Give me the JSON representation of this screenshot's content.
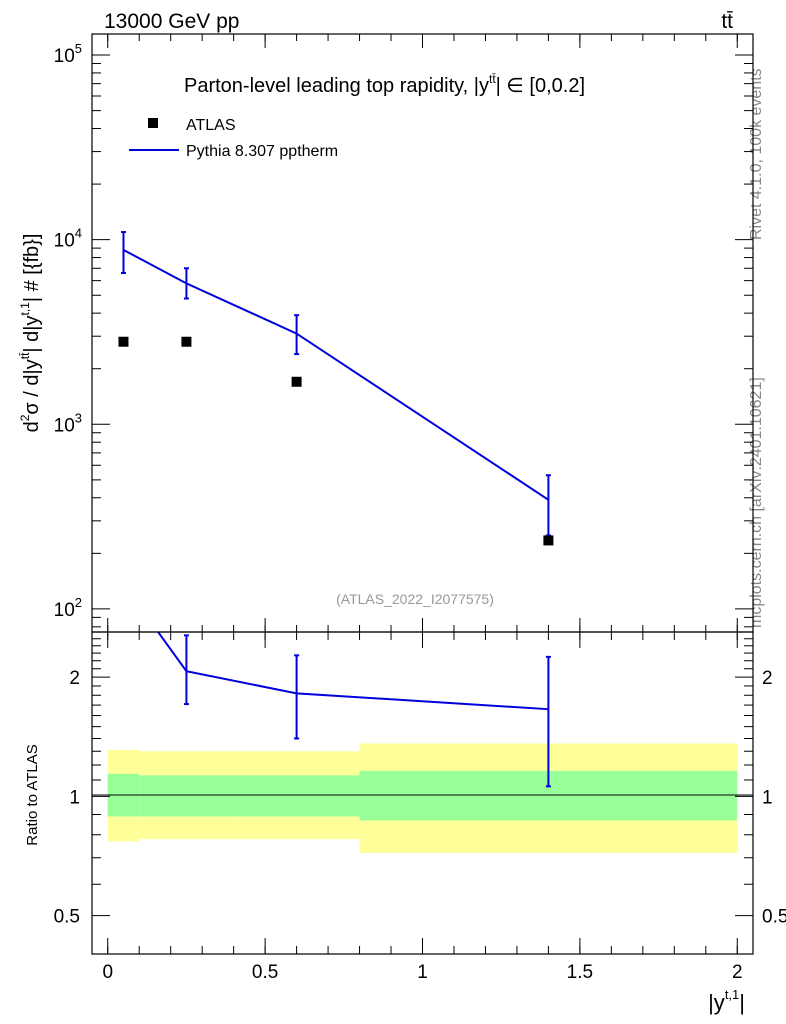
{
  "header": {
    "energy_label": "13000 GeV pp",
    "process_label": "tt̄"
  },
  "side_text": {
    "rivet": "Rivet 4.1.0,  100k events",
    "site": "mcplots.cern.ch [arXiv:2401.10621]"
  },
  "chart_data": [
    {
      "type": "scatter",
      "title": "Parton-level leading top rapidity, |y",
      "title_sup": "tt̄",
      "title_suffix": "| ∈ [0,0.2]",
      "ylabel": "d²σ / d|y^{tt̄}| d|y^{t,1}| # [{fb}]",
      "ylabel_main": "d",
      "ylabel_sup1": "2",
      "ylabel_mid": "σ / d|y",
      "ylabel_sup2": "tt̄",
      "ylabel_mid2": "| d|y",
      "ylabel_sup3": "t,1",
      "ylabel_end": "| # [{fb}]",
      "yscale": "log",
      "ylim": [
        75,
        130000
      ],
      "xlim": [
        -0.05,
        2.05
      ],
      "y_ticks": [
        {
          "value": 100,
          "base": "10",
          "exp": "2"
        },
        {
          "value": 1000,
          "base": "10",
          "exp": "3"
        },
        {
          "value": 10000,
          "base": "10",
          "exp": "4"
        },
        {
          "value": 100000,
          "base": "10",
          "exp": "5"
        }
      ],
      "legend_position": "top-left",
      "watermark": "(ATLAS_2022_I2077575)",
      "series": [
        {
          "name": "ATLAS",
          "style": "markers",
          "color": "#000000",
          "x": [
            0.05,
            0.25,
            0.6,
            1.4
          ],
          "y": [
            2800,
            2800,
            1700,
            235
          ]
        },
        {
          "name": "Pythia 8.307 pptherm",
          "style": "line",
          "color": "#0000dd",
          "x": [
            0.05,
            0.25,
            0.6,
            1.4
          ],
          "y": [
            8800,
            5800,
            3100,
            390
          ],
          "err_low": [
            6600,
            4800,
            2400,
            250
          ],
          "err_high": [
            11000,
            7000,
            3900,
            530
          ]
        }
      ]
    },
    {
      "type": "line",
      "ylabel": "Ratio to ATLAS",
      "yscale": "log",
      "ylim": [
        0.4,
        2.6
      ],
      "xlim": [
        -0.05,
        2.05
      ],
      "x_ticks": [
        {
          "value": 0,
          "label": "0"
        },
        {
          "value": 0.5,
          "label": "0.5"
        },
        {
          "value": 1,
          "label": "1"
        },
        {
          "value": 1.5,
          "label": "1.5"
        },
        {
          "value": 2,
          "label": "2"
        }
      ],
      "y_ticks": [
        {
          "value": 0.5,
          "label": "0.5"
        },
        {
          "value": 1,
          "label": "1"
        },
        {
          "value": 2,
          "label": "2"
        }
      ],
      "xlabel_main": "|y",
      "xlabel_sup": "t,1",
      "xlabel_end": "|",
      "bands": [
        {
          "x0": 0.0,
          "x1": 0.1,
          "yellow": [
            0.77,
            1.31
          ],
          "green": [
            0.89,
            1.14
          ]
        },
        {
          "x0": 0.1,
          "x1": 0.4,
          "yellow": [
            0.78,
            1.3
          ],
          "green": [
            0.89,
            1.13
          ]
        },
        {
          "x0": 0.4,
          "x1": 0.8,
          "yellow": [
            0.78,
            1.3
          ],
          "green": [
            0.89,
            1.13
          ]
        },
        {
          "x0": 0.8,
          "x1": 2.0,
          "yellow": [
            0.72,
            1.36
          ],
          "green": [
            0.87,
            1.16
          ]
        }
      ],
      "band_colors": {
        "yellow": "#ffff99",
        "green": "#99ff99"
      },
      "series": [
        {
          "name": "Pythia 8.307 pptherm",
          "color": "#0000dd",
          "line_x": [
            0.16,
            0.25,
            0.6,
            1.4
          ],
          "line_y": [
            2.6,
            2.07,
            1.82,
            1.66
          ],
          "x": [
            0.25,
            0.6,
            1.4
          ],
          "y": [
            2.07,
            1.82,
            1.66
          ],
          "err_low": [
            1.71,
            1.4,
            1.06
          ],
          "err_high": [
            2.55,
            2.27,
            2.25
          ]
        }
      ]
    }
  ]
}
